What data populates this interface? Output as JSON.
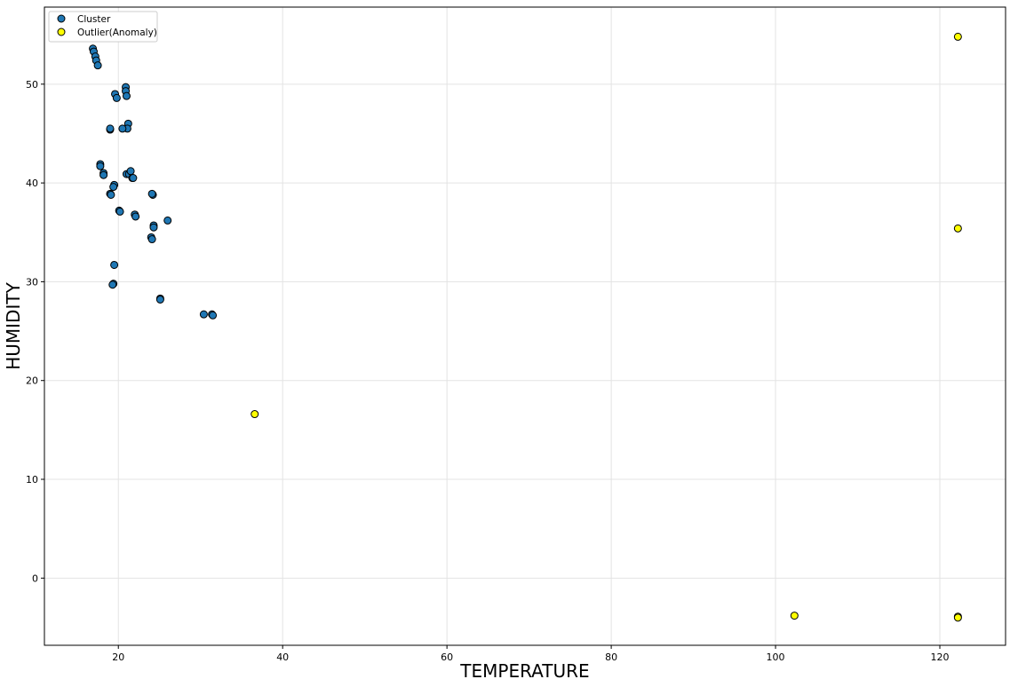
{
  "chart_data": {
    "type": "scatter",
    "title": "",
    "xlabel": "TEMPERATURE",
    "ylabel": "HUMIDITY",
    "xlim": [
      11,
      128
    ],
    "ylim": [
      -6.8,
      57.8
    ],
    "x_ticks": [
      20,
      40,
      60,
      80,
      100,
      120
    ],
    "y_ticks": [
      0,
      10,
      20,
      30,
      40,
      50
    ],
    "grid": true,
    "legend_position": "top-left",
    "series": [
      {
        "name": "Cluster",
        "color": "#1f77b4",
        "edgecolor": "#000000",
        "points": [
          [
            16.9,
            53.6
          ],
          [
            17.0,
            53.3
          ],
          [
            17.2,
            52.8
          ],
          [
            17.3,
            52.4
          ],
          [
            17.5,
            51.9
          ],
          [
            20.9,
            49.7
          ],
          [
            20.9,
            49.3
          ],
          [
            19.6,
            49.0
          ],
          [
            19.8,
            48.6
          ],
          [
            21.0,
            48.8
          ],
          [
            21.2,
            46.0
          ],
          [
            21.1,
            45.5
          ],
          [
            20.5,
            45.5
          ],
          [
            19.0,
            45.4
          ],
          [
            19.0,
            45.5
          ],
          [
            17.8,
            41.9
          ],
          [
            17.8,
            41.7
          ],
          [
            18.2,
            41.0
          ],
          [
            18.2,
            40.8
          ],
          [
            21.0,
            40.9
          ],
          [
            21.3,
            40.9
          ],
          [
            21.5,
            41.2
          ],
          [
            21.7,
            40.5
          ],
          [
            21.8,
            40.5
          ],
          [
            19.5,
            39.8
          ],
          [
            19.4,
            39.6
          ],
          [
            19.0,
            38.9
          ],
          [
            19.1,
            38.8
          ],
          [
            24.2,
            38.8
          ],
          [
            24.1,
            38.9
          ],
          [
            20.1,
            37.2
          ],
          [
            20.2,
            37.1
          ],
          [
            22.0,
            36.8
          ],
          [
            22.1,
            36.6
          ],
          [
            26.0,
            36.2
          ],
          [
            24.3,
            35.7
          ],
          [
            24.3,
            35.5
          ],
          [
            24.0,
            34.5
          ],
          [
            24.1,
            34.3
          ],
          [
            19.5,
            31.7
          ],
          [
            19.4,
            29.8
          ],
          [
            19.3,
            29.7
          ],
          [
            25.1,
            28.3
          ],
          [
            25.1,
            28.2
          ],
          [
            30.4,
            26.7
          ],
          [
            31.4,
            26.7
          ],
          [
            31.5,
            26.6
          ]
        ]
      },
      {
        "name": "Outlier(Anomaly)",
        "color": "#ffff00",
        "edgecolor": "#000000",
        "points": [
          [
            122.2,
            54.8
          ],
          [
            122.2,
            35.4
          ],
          [
            36.6,
            16.6
          ],
          [
            102.3,
            -3.8
          ],
          [
            122.2,
            -3.9
          ],
          [
            122.2,
            -4.0
          ]
        ]
      }
    ]
  }
}
